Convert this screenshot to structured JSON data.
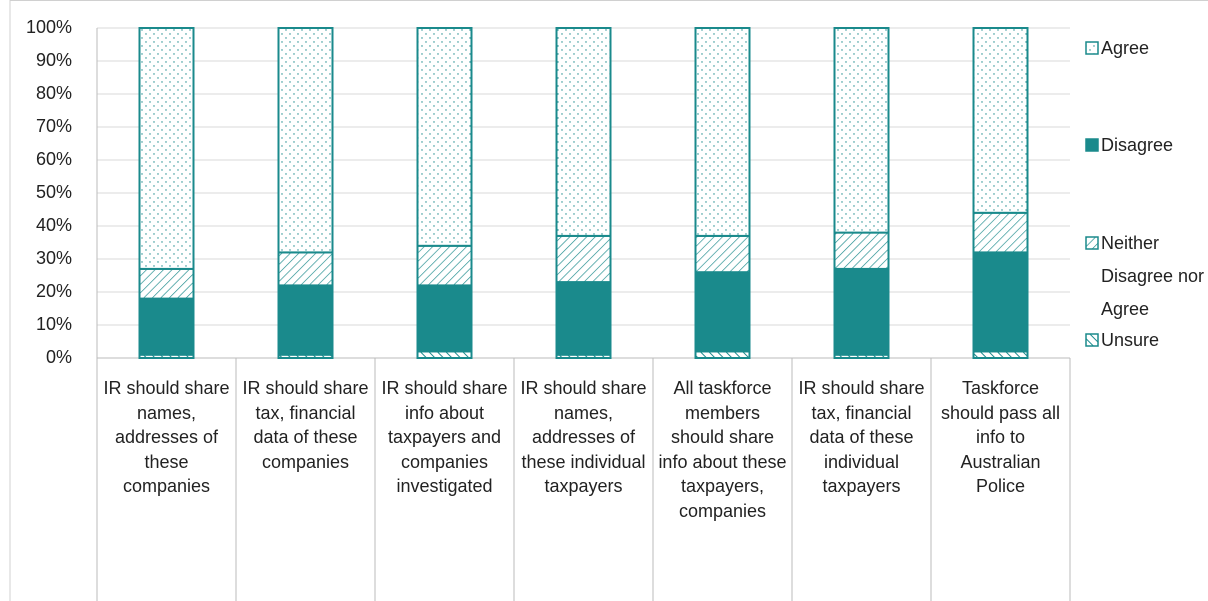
{
  "chart_data": {
    "type": "stacked_bar",
    "categories": [
      "IR should share names, addresses of these companies",
      "IR should share tax, financial data of these companies",
      "IR should share info about taxpayers and companies investigated",
      "IR should share names, addresses of these individual taxpayers",
      "All taskforce members should share info about these taxpayers, companies",
      "IR should share tax, financial data of these individual taxpayers",
      "Taskforce should pass all info to Australian Police"
    ],
    "series": [
      {
        "name": "Unsure",
        "color": "#1a8a8c",
        "values": [
          1,
          1,
          2,
          1,
          2,
          1,
          2
        ]
      },
      {
        "name": "Disagree",
        "color": "#1a8a8c",
        "values": [
          17,
          21,
          20,
          22,
          24,
          26,
          30
        ]
      },
      {
        "name": "Neither Disagree nor Agree",
        "color": "#1a8a8c",
        "values": [
          9,
          10,
          12,
          14,
          11,
          11,
          12
        ]
      },
      {
        "name": "Agree",
        "color": "#1a8a8c",
        "values": [
          73,
          68,
          66,
          63,
          63,
          62,
          56
        ]
      }
    ],
    "ylim": [
      0,
      100
    ],
    "yticks": [
      {
        "value": 0,
        "label": "0%"
      },
      {
        "value": 10,
        "label": "10%"
      },
      {
        "value": 20,
        "label": "20%"
      },
      {
        "value": 30,
        "label": "30%"
      },
      {
        "value": 40,
        "label": "40%"
      },
      {
        "value": 50,
        "label": "50%"
      },
      {
        "value": 60,
        "label": "60%"
      },
      {
        "value": 70,
        "label": "70%"
      },
      {
        "value": 80,
        "label": "80%"
      },
      {
        "value": 90,
        "label": "90%"
      },
      {
        "value": 100,
        "label": "100%"
      }
    ],
    "grid": true,
    "legend": "right"
  }
}
